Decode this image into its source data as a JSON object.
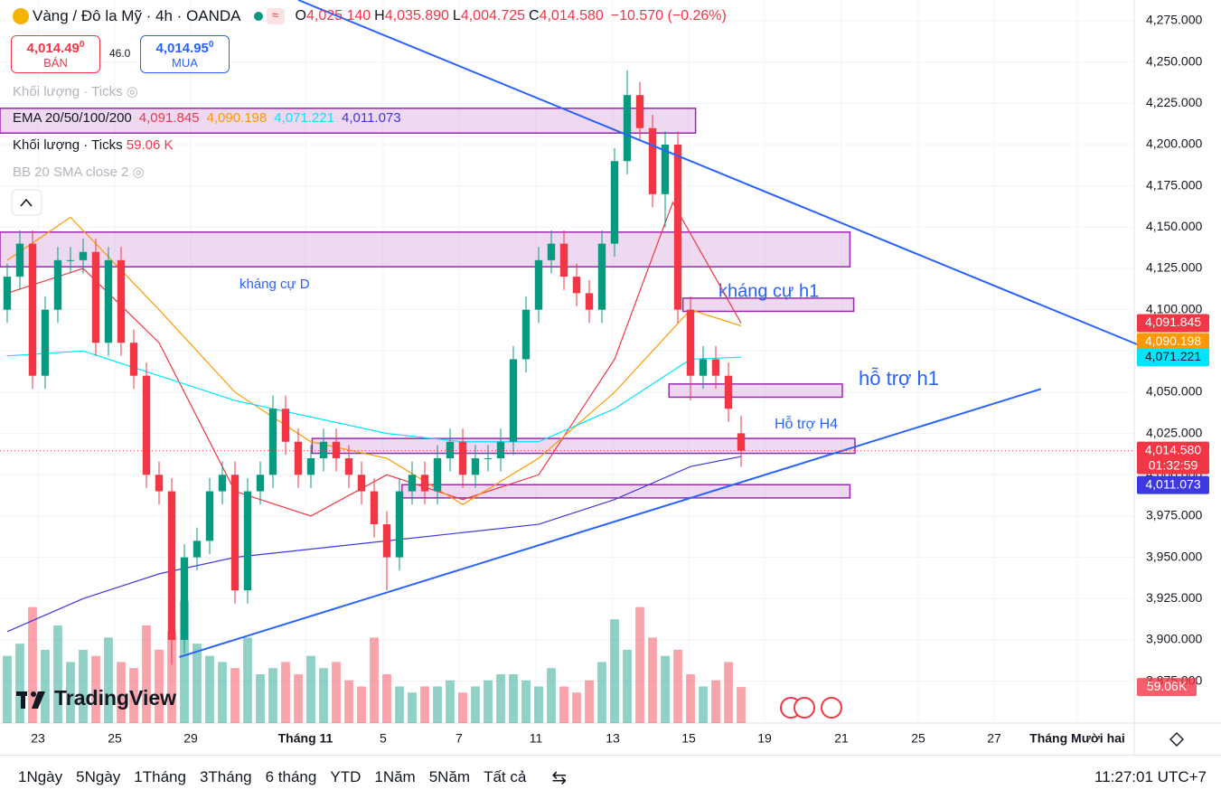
{
  "header": {
    "symbol": "Vàng / Đô la Mỹ · 4h · OANDA",
    "ohlc": [
      {
        "k": "O",
        "v": "4,025.140"
      },
      {
        "k": "H",
        "v": "4,035.890"
      },
      {
        "k": "L",
        "v": "4,004.725"
      },
      {
        "k": "C",
        "v": "4,014.580"
      }
    ],
    "change": "−10.570 (−0.26%)",
    "sell": {
      "price": "4,014.49",
      "sup": "0",
      "label": "BÁN"
    },
    "spread": "46.0",
    "buy": {
      "price": "4,014.95",
      "sup": "0",
      "label": "MUA"
    }
  },
  "legend": {
    "volume_faded": "Khối lượng · Ticks",
    "ema": "EMA 20/50/100/200",
    "volume": "Khối lượng · Ticks",
    "volume_value": "59.06 K",
    "bb": "BB 20 SMA close 2"
  },
  "chart_data": {
    "type": "candlestick",
    "xlim": [
      -0.57,
      89.07
    ],
    "ylim": [
      3849.6,
      4287.6
    ],
    "xticks": [
      {
        "value": 2.43,
        "label": "23"
      },
      {
        "value": 8.5,
        "label": "25"
      },
      {
        "value": 14.5,
        "label": "29"
      },
      {
        "value": 23.57,
        "label": "Tháng 11"
      },
      {
        "value": 29.71,
        "label": "5"
      },
      {
        "value": 35.71,
        "label": "7"
      },
      {
        "value": 41.79,
        "label": "11"
      },
      {
        "value": 47.86,
        "label": "13"
      },
      {
        "value": 53.86,
        "label": "15"
      },
      {
        "value": 59.86,
        "label": "19"
      },
      {
        "value": 65.93,
        "label": "21"
      },
      {
        "value": 72,
        "label": "25"
      },
      {
        "value": 78,
        "label": "27"
      },
      {
        "value": 84.57,
        "label": "Tháng Mười hai"
      }
    ],
    "yticks": [
      {
        "value": 3875,
        "label": "3,875.000"
      },
      {
        "value": 3900,
        "label": "3,900.000"
      },
      {
        "value": 3925,
        "label": "3,925.000"
      },
      {
        "value": 3950,
        "label": "3,950.000"
      },
      {
        "value": 3975,
        "label": "3,975.000"
      },
      {
        "value": 4000,
        "label": "4,000.000"
      },
      {
        "value": 4025,
        "label": "4,025.000"
      },
      {
        "value": 4050,
        "label": "4,050.000"
      },
      {
        "value": 4075,
        "label": "4,075.000"
      },
      {
        "value": 4100,
        "label": "4,100.000"
      },
      {
        "value": 4125,
        "label": "4,125.000"
      },
      {
        "value": 4150,
        "label": "4,150.000"
      },
      {
        "value": 4175,
        "label": "4,175.000"
      },
      {
        "value": 4200,
        "label": "4,200.000"
      },
      {
        "value": 4225,
        "label": "4,225.000"
      },
      {
        "value": 4250,
        "label": "4,250.000"
      },
      {
        "value": 4275,
        "label": "4,275.000"
      }
    ],
    "up_color": "#089981",
    "down_color": "#f23645",
    "open": [
      4100,
      4120,
      4140,
      4060,
      4100,
      4130,
      4130,
      4135,
      4080,
      4130,
      4080,
      4060,
      4000,
      3990,
      3900,
      3950,
      3960,
      3990,
      4000,
      3930,
      3990,
      4000,
      4040,
      4020,
      4000,
      4010,
      4020,
      4010,
      4000,
      3990,
      3970,
      3950,
      3990,
      4000,
      3990,
      4010,
      4020,
      4000,
      4010,
      4010,
      4020,
      4070,
      4100,
      4130,
      4140,
      4120,
      4110,
      4100,
      4140,
      4190,
      4230,
      4210,
      4170,
      4200,
      4100,
      4060,
      4070,
      4060,
      4025.14
    ],
    "high": [
      4128,
      4148,
      4148,
      4108,
      4138,
      4138,
      4143,
      4143,
      4138,
      4138,
      4088,
      4068,
      4008,
      3998,
      3958,
      3968,
      3998,
      4008,
      4008,
      3998,
      4008,
      4048,
      4048,
      4028,
      4018,
      4028,
      4028,
      4018,
      4008,
      3998,
      3978,
      3998,
      4008,
      4008,
      4018,
      4028,
      4028,
      4018,
      4018,
      4028,
      4078,
      4108,
      4138,
      4148,
      4148,
      4128,
      4118,
      4148,
      4198,
      4245,
      4238,
      4218,
      4208,
      4208,
      4108,
      4078,
      4078,
      4068,
      4035.89
    ],
    "low": [
      4092,
      4112,
      4052,
      4052,
      4092,
      4122,
      4122,
      4072,
      4072,
      4072,
      4052,
      3992,
      3982,
      3885,
      3892,
      3942,
      3952,
      3982,
      3922,
      3922,
      3982,
      3992,
      4012,
      3992,
      3992,
      4002,
      4002,
      3992,
      3982,
      3962,
      3930,
      3942,
      3982,
      3982,
      3982,
      4002,
      3992,
      3992,
      4002,
      4002,
      4012,
      4062,
      4092,
      4122,
      4112,
      4102,
      4092,
      4092,
      4132,
      4182,
      4202,
      4162,
      4150,
      4092,
      4045,
      4052,
      4052,
      4032,
      4004.725
    ],
    "close": [
      4120,
      4140,
      4060,
      4100,
      4130,
      4130,
      4135,
      4080,
      4130,
      4080,
      4060,
      4000,
      3990,
      3900,
      3950,
      3960,
      3990,
      4000,
      3930,
      3990,
      4000,
      4040,
      4020,
      4000,
      4010,
      4020,
      4010,
      4000,
      3990,
      3970,
      3950,
      3990,
      4000,
      3990,
      4010,
      4020,
      4000,
      4010,
      4010,
      4020,
      4070,
      4100,
      4130,
      4140,
      4120,
      4110,
      4100,
      4140,
      4190,
      4230,
      4210,
      4170,
      4200,
      4100,
      4060,
      4070,
      4060,
      4040,
      4014.58
    ],
    "volume": [
      110,
      130,
      190,
      120,
      160,
      100,
      120,
      110,
      140,
      100,
      90,
      160,
      120,
      150,
      200,
      130,
      110,
      100,
      90,
      140,
      80,
      90,
      100,
      80,
      110,
      90,
      100,
      70,
      60,
      140,
      80,
      60,
      50,
      60,
      60,
      70,
      50,
      60,
      70,
      80,
      80,
      70,
      60,
      90,
      60,
      50,
      70,
      100,
      170,
      120,
      190,
      140,
      110,
      120,
      80,
      60,
      70,
      100,
      59.06
    ],
    "volume_lim": [
      0,
      370
    ],
    "volume_label": "59.06K",
    "last_price": 4014.58,
    "last_price_label": "4,014.580",
    "countdown": "01:32:59",
    "series": [
      {
        "name": "EMA 20",
        "color": "#f23645",
        "x": [
          0,
          6,
          12,
          18,
          24,
          30,
          36,
          42,
          48,
          52.6,
          58
        ],
        "values": [
          4110,
          4125,
          4080,
          3990,
          3975,
          4000,
          3985,
          4000,
          4070,
          4165,
          4091.845
        ],
        "label": "4,091.845",
        "text_color": "#ffffff"
      },
      {
        "name": "EMA 50",
        "color": "#ff9800",
        "x": [
          0,
          5,
          12,
          18,
          24,
          30,
          36,
          42,
          48,
          54,
          58
        ],
        "values": [
          4130,
          4156,
          4100,
          4050,
          4020,
          4010,
          3982,
          4010,
          4050,
          4100,
          4090.198
        ],
        "label": "4,090.198",
        "text_color": "#ffffff"
      },
      {
        "name": "EMA 100",
        "color": "#00e5ff",
        "x": [
          0,
          6,
          12,
          18,
          24,
          30,
          36,
          42,
          48,
          54,
          58
        ],
        "values": [
          4072,
          4075,
          4060,
          4045,
          4035,
          4025,
          4020,
          4020,
          4040,
          4070,
          4071.221
        ],
        "label": "4,071.221",
        "text_color": "#131722"
      },
      {
        "name": "EMA 200",
        "color": "#3f37e0",
        "x": [
          0,
          6,
          12,
          18,
          24,
          30,
          36,
          42,
          48,
          54,
          58
        ],
        "values": [
          3905,
          3925,
          3940,
          3950,
          3955,
          3960,
          3965,
          3970,
          3985,
          4005,
          4011.073
        ],
        "label": "4,011.073",
        "text_color": "#ffffff"
      }
    ],
    "zones": [
      {
        "x": [
          -0.57,
          54.4
        ],
        "y": [
          4222,
          4207
        ]
      },
      {
        "x": [
          -0.57,
          66.6
        ],
        "y": [
          4147,
          4126
        ],
        "label": "kháng cự D"
      },
      {
        "x": [
          53.4,
          66.9
        ],
        "y": [
          4107,
          4099
        ],
        "label": "kháng cự h1"
      },
      {
        "x": [
          52.3,
          66
        ],
        "y": [
          4055,
          4047
        ],
        "label": "hỗ trợ h1"
      },
      {
        "x": [
          24.1,
          67
        ],
        "y": [
          4022,
          4013
        ],
        "label": "Hỗ trợ H4"
      },
      {
        "x": [
          31.2,
          66.6
        ],
        "y": [
          3994,
          3986
        ]
      }
    ],
    "trendlines": [
      {
        "x": [
          23,
          89.3
        ],
        "y": [
          4287.6,
          4079
        ]
      },
      {
        "x": [
          13.6,
          81.7
        ],
        "y": [
          3889.6,
          4052
        ]
      }
    ]
  },
  "logo": "TradingView",
  "toolbar": {
    "ranges": [
      "1Ngày",
      "5Ngày",
      "1Tháng",
      "3Tháng",
      "6 tháng",
      "YTD",
      "1Năm",
      "5Năm",
      "Tất cả"
    ],
    "clock": "11:27:01 UTC+7"
  }
}
